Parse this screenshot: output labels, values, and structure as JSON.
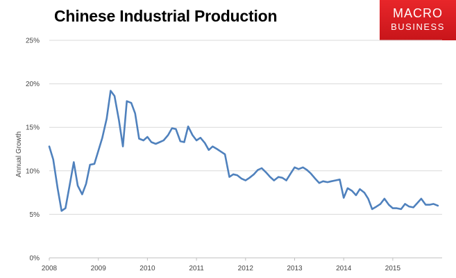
{
  "header": {
    "title": "Chinese Industrial Production",
    "logo_line1": "MACRO",
    "logo_line2": "BUSINESS"
  },
  "chart_data": {
    "type": "line",
    "title": "Chinese Industrial Production",
    "xlabel": "",
    "ylabel": "Annual Growth",
    "xlim": [
      2008.0,
      2016.0
    ],
    "ylim": [
      0,
      25
    ],
    "grid": true,
    "legend": "none",
    "y_ticks": [
      "0%",
      "5%",
      "10%",
      "15%",
      "20%",
      "25%"
    ],
    "y_tick_values": [
      0,
      5,
      10,
      15,
      20,
      25
    ],
    "x_ticks": [
      "2008",
      "2009",
      "2010",
      "2011",
      "2012",
      "2013",
      "2014",
      "2015"
    ],
    "x_tick_values": [
      2008,
      2009,
      2010,
      2011,
      2012,
      2013,
      2014,
      2015
    ],
    "line_color": "#4f81bd",
    "series": [
      {
        "values": [
          [
            2008.0,
            12.8
          ],
          [
            2008.08,
            11.3
          ],
          [
            2008.17,
            8.0
          ],
          [
            2008.25,
            5.4
          ],
          [
            2008.33,
            5.7
          ],
          [
            2008.42,
            8.5
          ],
          [
            2008.5,
            11.0
          ],
          [
            2008.58,
            8.3
          ],
          [
            2008.67,
            7.3
          ],
          [
            2008.75,
            8.5
          ],
          [
            2008.83,
            10.7
          ],
          [
            2008.92,
            10.8
          ],
          [
            2009.0,
            12.3
          ],
          [
            2009.08,
            13.8
          ],
          [
            2009.17,
            16.0
          ],
          [
            2009.25,
            19.2
          ],
          [
            2009.33,
            18.6
          ],
          [
            2009.42,
            15.8
          ],
          [
            2009.5,
            12.8
          ],
          [
            2009.58,
            18.0
          ],
          [
            2009.67,
            17.8
          ],
          [
            2009.75,
            16.6
          ],
          [
            2009.83,
            13.7
          ],
          [
            2009.92,
            13.5
          ],
          [
            2010.0,
            13.9
          ],
          [
            2010.08,
            13.3
          ],
          [
            2010.17,
            13.1
          ],
          [
            2010.25,
            13.3
          ],
          [
            2010.33,
            13.5
          ],
          [
            2010.42,
            14.1
          ],
          [
            2010.5,
            14.9
          ],
          [
            2010.58,
            14.8
          ],
          [
            2010.67,
            13.4
          ],
          [
            2010.75,
            13.3
          ],
          [
            2010.83,
            15.1
          ],
          [
            2010.92,
            14.1
          ],
          [
            2011.0,
            13.5
          ],
          [
            2011.08,
            13.8
          ],
          [
            2011.17,
            13.2
          ],
          [
            2011.25,
            12.4
          ],
          [
            2011.33,
            12.8
          ],
          [
            2011.42,
            12.5
          ],
          [
            2011.5,
            12.2
          ],
          [
            2011.58,
            11.9
          ],
          [
            2011.67,
            9.3
          ],
          [
            2011.75,
            9.6
          ],
          [
            2011.83,
            9.5
          ],
          [
            2011.92,
            9.1
          ],
          [
            2012.0,
            8.9
          ],
          [
            2012.08,
            9.2
          ],
          [
            2012.17,
            9.6
          ],
          [
            2012.25,
            10.1
          ],
          [
            2012.33,
            10.3
          ],
          [
            2012.42,
            9.8
          ],
          [
            2012.5,
            9.3
          ],
          [
            2012.58,
            8.9
          ],
          [
            2012.67,
            9.3
          ],
          [
            2012.75,
            9.2
          ],
          [
            2012.83,
            8.9
          ],
          [
            2012.92,
            9.7
          ],
          [
            2013.0,
            10.4
          ],
          [
            2013.08,
            10.2
          ],
          [
            2013.17,
            10.4
          ],
          [
            2013.25,
            10.1
          ],
          [
            2013.33,
            9.7
          ],
          [
            2013.42,
            9.1
          ],
          [
            2013.5,
            8.6
          ],
          [
            2013.58,
            8.8
          ],
          [
            2013.67,
            8.7
          ],
          [
            2013.75,
            8.8
          ],
          [
            2013.83,
            8.9
          ],
          [
            2013.92,
            9.0
          ],
          [
            2014.0,
            6.9
          ],
          [
            2014.08,
            8.0
          ],
          [
            2014.17,
            7.7
          ],
          [
            2014.25,
            7.2
          ],
          [
            2014.33,
            7.9
          ],
          [
            2014.42,
            7.5
          ],
          [
            2014.5,
            6.8
          ],
          [
            2014.58,
            5.6
          ],
          [
            2014.67,
            5.9
          ],
          [
            2014.75,
            6.2
          ],
          [
            2014.83,
            6.8
          ],
          [
            2014.92,
            6.1
          ],
          [
            2015.0,
            5.7
          ],
          [
            2015.08,
            5.7
          ],
          [
            2015.17,
            5.6
          ],
          [
            2015.25,
            6.2
          ],
          [
            2015.33,
            5.9
          ],
          [
            2015.42,
            5.8
          ],
          [
            2015.5,
            6.3
          ],
          [
            2015.58,
            6.8
          ],
          [
            2015.67,
            6.1
          ],
          [
            2015.75,
            6.1
          ],
          [
            2015.83,
            6.2
          ],
          [
            2015.92,
            6.0
          ]
        ]
      }
    ]
  }
}
